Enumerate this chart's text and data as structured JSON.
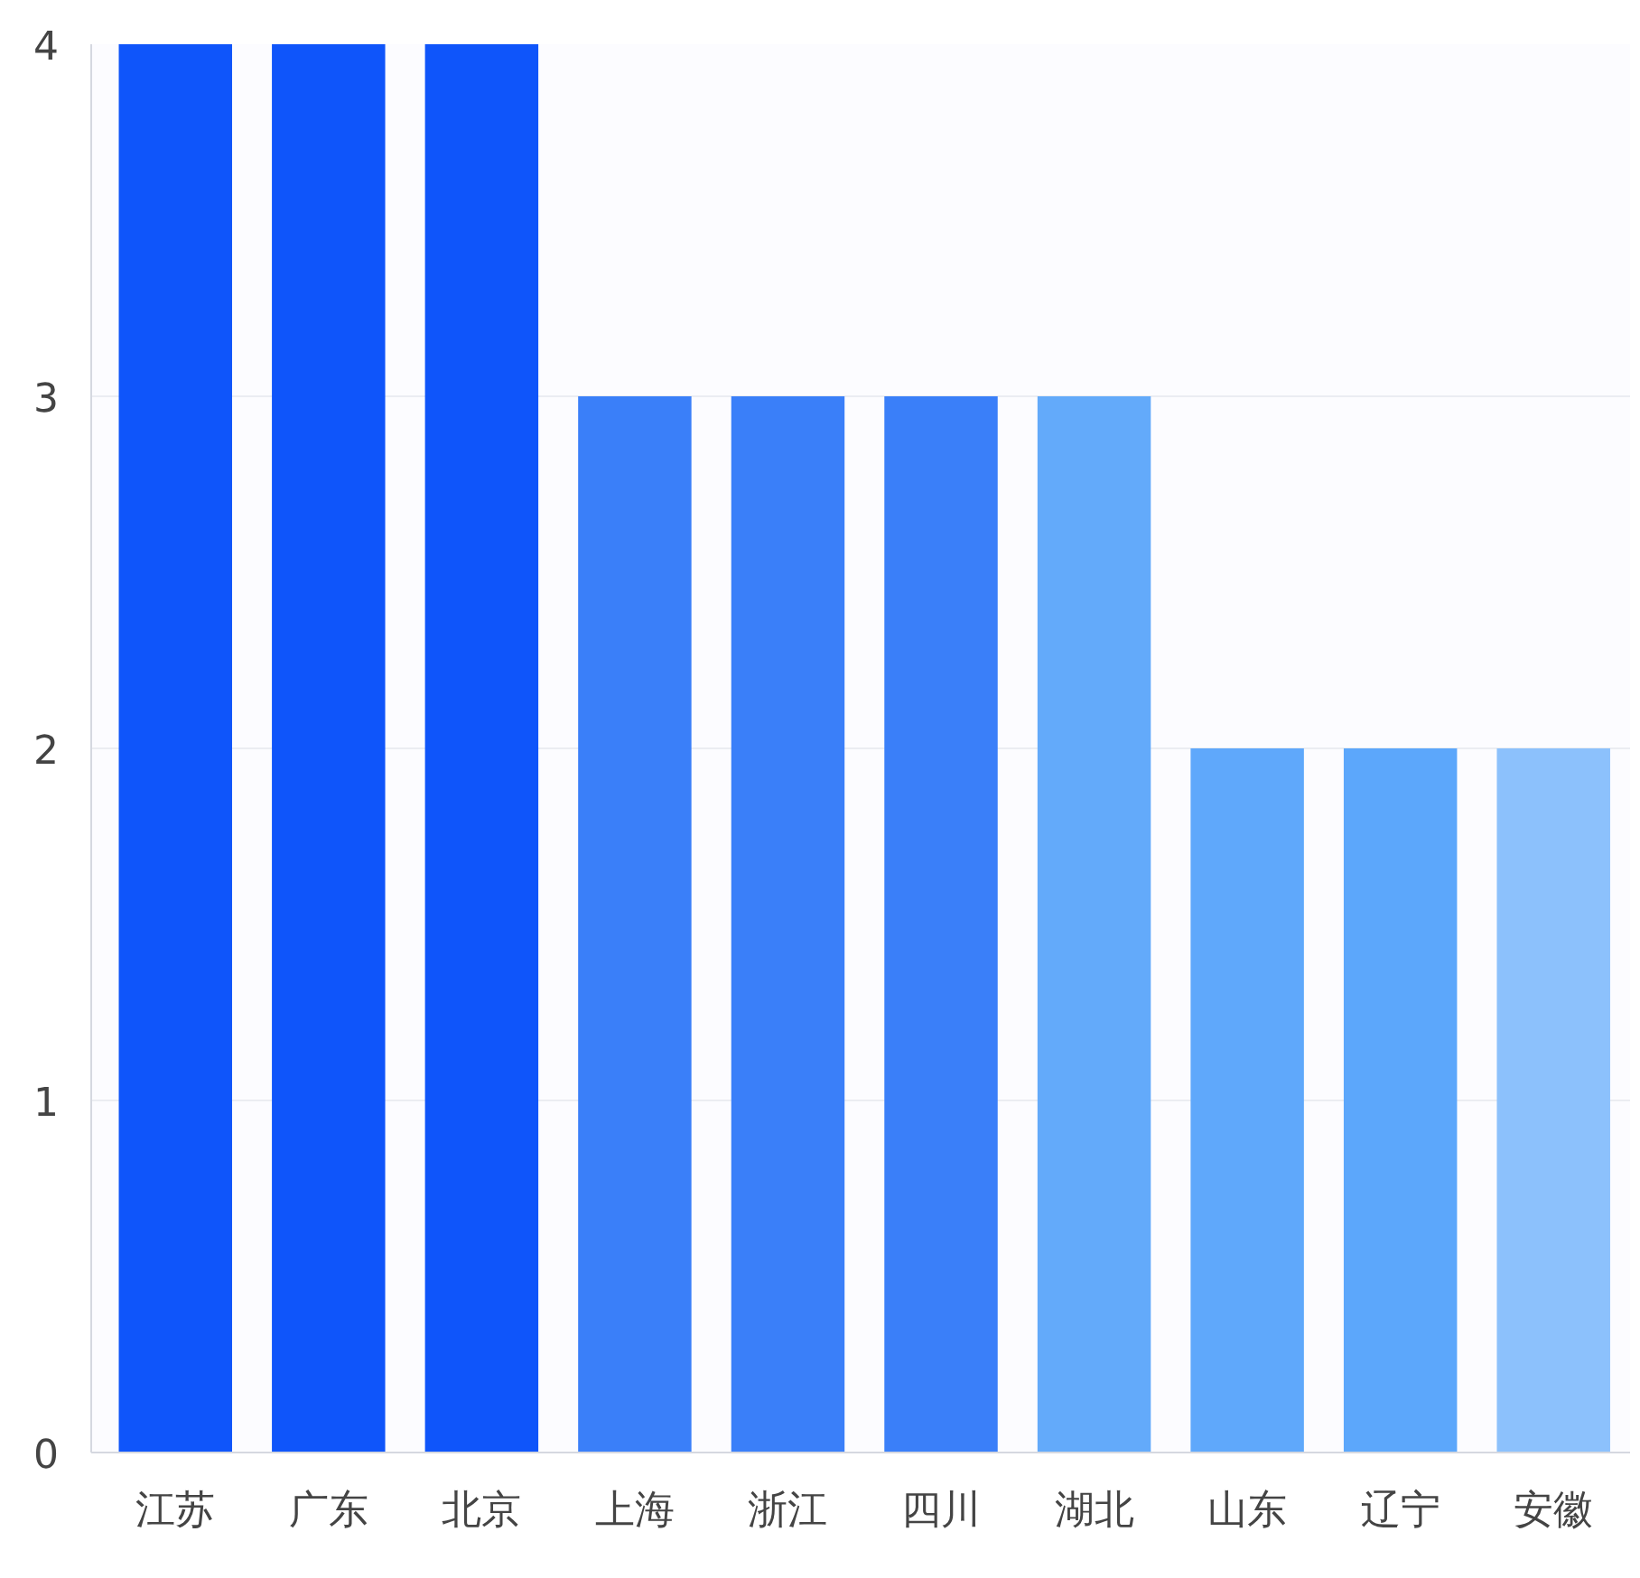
{
  "chart_data": {
    "type": "bar",
    "categories": [
      "江苏",
      "广东",
      "北京",
      "上海",
      "浙江",
      "四川",
      "湖北",
      "山东",
      "辽宁",
      "安徽"
    ],
    "values": [
      4,
      4,
      4,
      3,
      3,
      3,
      3,
      2,
      2,
      2
    ],
    "colors": [
      "#0f55fa",
      "#0f55fa",
      "#0f55fa",
      "#3a7ff9",
      "#3a7ff9",
      "#3a7ff9",
      "#63aafa",
      "#5fa8fb",
      "#5ca7fb",
      "#8cc1fc"
    ],
    "ylim": [
      0,
      4
    ],
    "yticks": [
      0,
      1,
      2,
      3,
      4
    ],
    "grid": "y"
  }
}
